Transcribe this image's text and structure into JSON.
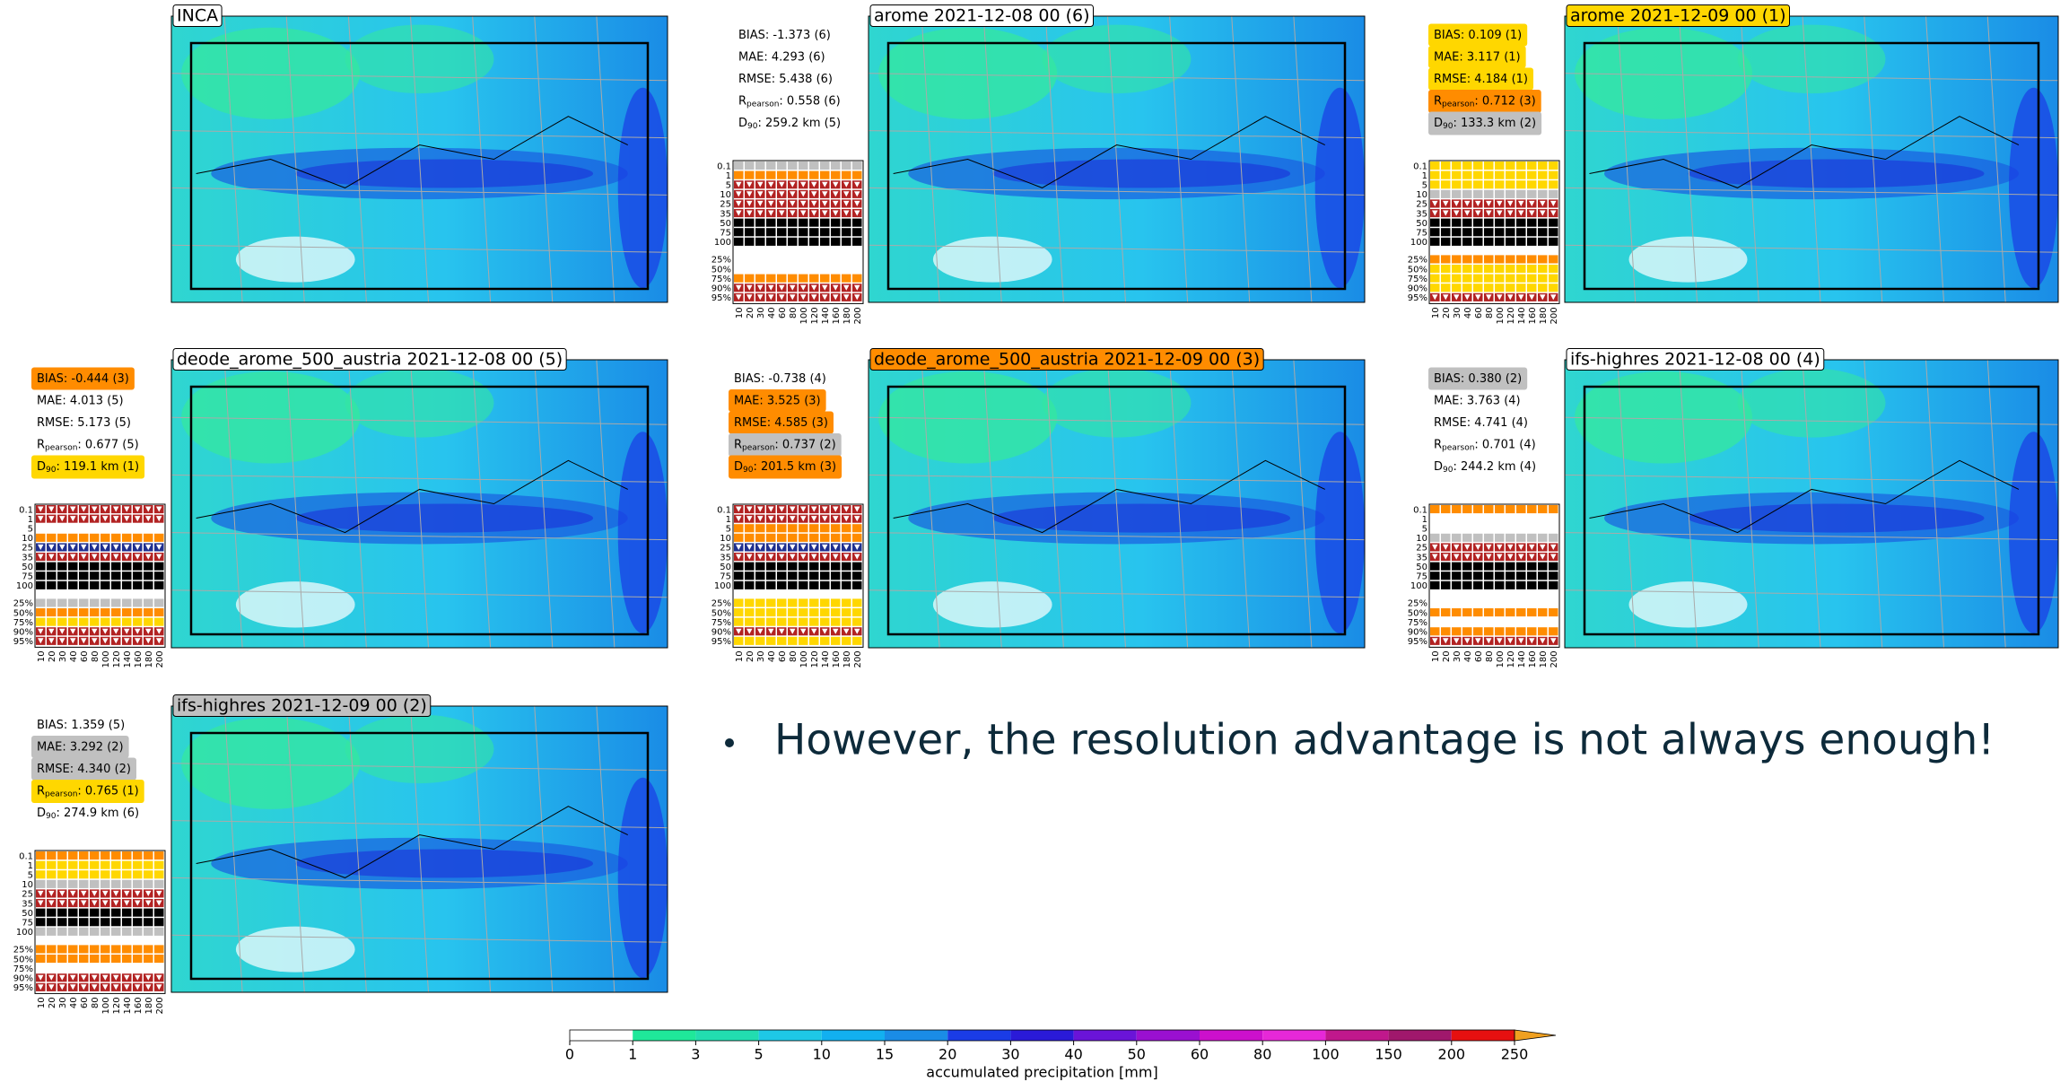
{
  "slide": {
    "bullet": "However, the resolution advantage is not always enough!"
  },
  "score_grid": {
    "rows": [
      "0.1",
      "1",
      "5",
      "10",
      "25",
      "35",
      "50",
      "75",
      "100",
      "25%",
      "50%",
      "75%",
      "90%",
      "95%"
    ],
    "cols": [
      10,
      20,
      30,
      40,
      60,
      80,
      100,
      120,
      140,
      160,
      180,
      200
    ],
    "cell_colors": [
      "#000000",
      "#ffd700",
      "#c0c0c0",
      "#ff8c00",
      "#ffffff",
      "#ffffff",
      "#b22222",
      "#1f2f8f"
    ]
  },
  "panels": [
    {
      "title": "INCA"
    },
    {
      "title": "arome 2021-12-08 00 (6)",
      "stats": [
        {
          "label": "BIAS",
          "value": ": -1.373 (6)"
        },
        {
          "label": "MAE",
          "value": ": 4.293 (6)"
        },
        {
          "label": "RMSE",
          "value": ": 5.438 (6)"
        },
        {
          "label": "R",
          "sub": "pearson",
          "value": ": 0.558 (6)"
        },
        {
          "label": "D",
          "sub": "90",
          "value": ": 259.2 km (5)"
        }
      ],
      "cells": [
        2,
        3,
        6,
        6,
        6,
        6,
        0,
        0,
        0,
        4,
        4,
        3,
        6,
        6
      ]
    },
    {
      "title": "arome 2021-12-09 00 (1)",
      "title_color": "#ffd700",
      "stats": [
        {
          "label": "BIAS",
          "value": ": 0.109 (1)",
          "color": "#ffd700"
        },
        {
          "label": "MAE",
          "value": ": 3.117 (1)",
          "color": "#ffd700"
        },
        {
          "label": "RMSE",
          "value": ": 4.184 (1)",
          "color": "#ffd700"
        },
        {
          "label": "R",
          "sub": "pearson",
          "value": ": 0.712 (3)",
          "color": "#ff8c00"
        },
        {
          "label": "D",
          "sub": "90",
          "value": ": 133.3 km (2)",
          "color": "#c0c0c0"
        }
      ],
      "cells": [
        1,
        1,
        1,
        2,
        6,
        6,
        0,
        0,
        0,
        3,
        1,
        1,
        1,
        6
      ]
    },
    {
      "title": "deode_arome_500_austria 2021-12-08 00 (5)",
      "stats": [
        {
          "label": "BIAS",
          "value": ": -0.444 (3)",
          "color": "#ff8c00"
        },
        {
          "label": "MAE",
          "value": ": 4.013 (5)"
        },
        {
          "label": "RMSE",
          "value": ": 5.173 (5)"
        },
        {
          "label": "R",
          "sub": "pearson",
          "value": ": 0.677 (5)"
        },
        {
          "label": "D",
          "sub": "90",
          "value": ": 119.1 km (1)",
          "color": "#ffd700"
        }
      ],
      "cells": [
        6,
        6,
        4,
        3,
        7,
        6,
        0,
        0,
        0,
        2,
        3,
        1,
        6,
        6
      ]
    },
    {
      "title": "deode_arome_500_austria 2021-12-09 00 (3)",
      "title_color": "#ff8c00",
      "stats": [
        {
          "label": "BIAS",
          "value": ": -0.738 (4)"
        },
        {
          "label": "MAE",
          "value": ": 3.525 (3)",
          "color": "#ff8c00"
        },
        {
          "label": "RMSE",
          "value": ": 4.585 (3)",
          "color": "#ff8c00"
        },
        {
          "label": "R",
          "sub": "pearson",
          "value": ": 0.737 (2)",
          "color": "#c0c0c0"
        },
        {
          "label": "D",
          "sub": "90",
          "value": ": 201.5 km (3)",
          "color": "#ff8c00"
        }
      ],
      "cells": [
        6,
        6,
        3,
        3,
        7,
        6,
        0,
        0,
        0,
        1,
        1,
        1,
        6,
        1
      ]
    },
    {
      "title": "ifs-highres 2021-12-08 00 (4)",
      "stats": [
        {
          "label": "BIAS",
          "value": ": 0.380 (2)",
          "color": "#c0c0c0"
        },
        {
          "label": "MAE",
          "value": ": 3.763 (4)"
        },
        {
          "label": "RMSE",
          "value": ": 4.741 (4)"
        },
        {
          "label": "R",
          "sub": "pearson",
          "value": ": 0.701 (4)"
        },
        {
          "label": "D",
          "sub": "90",
          "value": ": 244.2 km (4)"
        }
      ],
      "cells": [
        3,
        4,
        4,
        2,
        6,
        6,
        0,
        0,
        0,
        4,
        3,
        4,
        3,
        6
      ]
    },
    {
      "title": "ifs-highres 2021-12-09 00 (2)",
      "title_color": "#c0c0c0",
      "stats": [
        {
          "label": "BIAS",
          "value": ": 1.359 (5)"
        },
        {
          "label": "MAE",
          "value": ": 3.292 (2)",
          "color": "#c0c0c0"
        },
        {
          "label": "RMSE",
          "value": ": 4.340 (2)",
          "color": "#c0c0c0"
        },
        {
          "label": "R",
          "sub": "pearson",
          "value": ": 0.765 (1)",
          "color": "#ffd700"
        },
        {
          "label": "D",
          "sub": "90",
          "value": ": 274.9 km (6)"
        }
      ],
      "cells": [
        3,
        1,
        1,
        2,
        6,
        6,
        0,
        0,
        2,
        3,
        3,
        4,
        6,
        6
      ]
    }
  ],
  "colorbar": {
    "ticks": [
      0,
      1,
      3,
      5,
      10,
      15,
      20,
      30,
      40,
      50,
      60,
      80,
      100,
      150,
      200,
      250
    ],
    "colors": [
      "#ffffff",
      "#1fe89a",
      "#22ddb0",
      "#1ec8e6",
      "#12b0f0",
      "#1a8ce6",
      "#1a3ce6",
      "#2a1ad8",
      "#6a14d8",
      "#9a10d0",
      "#cc10cc",
      "#e628d8",
      "#c0188c",
      "#a0186c",
      "#e61010"
    ],
    "extend_color": "#f0a020",
    "label": "accumulated precipitation [mm]"
  }
}
